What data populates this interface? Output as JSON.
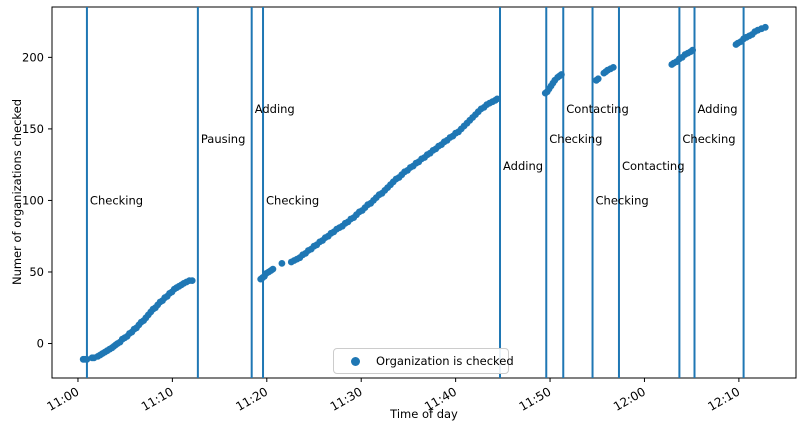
{
  "chart_data": {
    "type": "scatter",
    "title": "",
    "xlabel": "Time of day",
    "ylabel": "Numer of organizations checked",
    "series_name": "Organization is checked",
    "grid": false,
    "legend_position": "lower center",
    "colors": {
      "series": "#1f77b4",
      "event_line": "#1f77b4",
      "spine": "#000000",
      "text": "#000000"
    },
    "x_axis": {
      "label": "Time of day",
      "tick_minutes": [
        0,
        10,
        20,
        30,
        40,
        50,
        60,
        70
      ],
      "tick_labels": [
        "11:00",
        "11:10",
        "11:20",
        "11:30",
        "11:40",
        "11:50",
        "12:00",
        "12:10"
      ],
      "range_minutes": [
        -2.75,
        76.05
      ]
    },
    "y_axis": {
      "label": "Numer of organizations checked",
      "ticks": [
        0,
        50,
        100,
        150,
        200
      ],
      "tick_labels": [
        "0",
        "50",
        "100",
        "150",
        "200"
      ],
      "range": [
        -24.1,
        235.2
      ]
    },
    "event_lines": [
      {
        "time_minutes": 0.95,
        "clock": "11:01",
        "label": "Checking",
        "label_value": 100
      },
      {
        "time_minutes": 12.7,
        "clock": "11:13",
        "label": "Pausing",
        "label_value": 143
      },
      {
        "time_minutes": 18.4,
        "clock": "11:18",
        "label": "Adding",
        "label_value": 164
      },
      {
        "time_minutes": 19.6,
        "clock": "11:20",
        "label": "Checking",
        "label_value": 100
      },
      {
        "time_minutes": 44.7,
        "clock": "11:45",
        "label": "Adding",
        "label_value": 124
      },
      {
        "time_minutes": 49.6,
        "clock": "11:50",
        "label": "Checking",
        "label_value": 143
      },
      {
        "time_minutes": 51.4,
        "clock": "11:51",
        "label": "Contacting",
        "label_value": 164
      },
      {
        "time_minutes": 54.5,
        "clock": "11:54",
        "label": "Checking",
        "label_value": 100
      },
      {
        "time_minutes": 57.3,
        "clock": "11:57",
        "label": "Contacting",
        "label_value": 124
      },
      {
        "time_minutes": 63.7,
        "clock": "12:04",
        "label": "Checking",
        "label_value": 143
      },
      {
        "time_minutes": 65.3,
        "clock": "12:05",
        "label": "Adding",
        "label_value": 164
      },
      {
        "time_minutes": 70.5,
        "clock": "12:10",
        "label": "",
        "label_value": null
      }
    ],
    "points_time_value": [
      [
        0.55,
        -11
      ],
      [
        0.75,
        -11
      ],
      [
        0.95,
        -11
      ],
      [
        1.5,
        -10
      ],
      [
        1.7,
        -10
      ],
      [
        2.1,
        -9
      ],
      [
        2.35,
        -8
      ],
      [
        2.6,
        -7
      ],
      [
        2.85,
        -6
      ],
      [
        3.1,
        -5
      ],
      [
        3.35,
        -4
      ],
      [
        3.6,
        -3
      ],
      [
        3.8,
        -2
      ],
      [
        4.0,
        -1
      ],
      [
        4.2,
        0
      ],
      [
        4.45,
        1
      ],
      [
        4.7,
        3
      ],
      [
        4.95,
        4
      ],
      [
        5.2,
        5
      ],
      [
        5.45,
        7
      ],
      [
        5.7,
        8
      ],
      [
        5.95,
        10
      ],
      [
        6.2,
        11
      ],
      [
        6.45,
        13
      ],
      [
        6.7,
        15
      ],
      [
        6.95,
        16
      ],
      [
        7.2,
        18
      ],
      [
        7.45,
        20
      ],
      [
        7.7,
        22
      ],
      [
        7.95,
        24
      ],
      [
        8.2,
        25
      ],
      [
        8.45,
        27
      ],
      [
        8.7,
        29
      ],
      [
        8.95,
        30
      ],
      [
        9.2,
        32
      ],
      [
        9.45,
        33
      ],
      [
        9.7,
        35
      ],
      [
        9.95,
        36
      ],
      [
        10.2,
        38
      ],
      [
        10.45,
        39
      ],
      [
        10.7,
        40
      ],
      [
        10.95,
        41
      ],
      [
        11.2,
        42
      ],
      [
        11.5,
        43
      ],
      [
        11.8,
        44
      ],
      [
        12.1,
        44
      ],
      [
        19.35,
        45
      ],
      [
        19.55,
        46
      ],
      [
        19.75,
        47
      ],
      [
        19.95,
        49
      ],
      [
        20.2,
        50
      ],
      [
        20.45,
        51
      ],
      [
        20.65,
        52
      ],
      [
        21.6,
        56
      ],
      [
        22.6,
        57
      ],
      [
        22.9,
        58
      ],
      [
        23.2,
        59
      ],
      [
        23.5,
        60
      ],
      [
        23.8,
        62
      ],
      [
        24.1,
        63
      ],
      [
        24.4,
        65
      ],
      [
        24.7,
        66
      ],
      [
        25.0,
        68
      ],
      [
        25.3,
        69
      ],
      [
        25.6,
        71
      ],
      [
        25.9,
        72
      ],
      [
        26.2,
        74
      ],
      [
        26.5,
        75
      ],
      [
        26.8,
        77
      ],
      [
        27.1,
        78
      ],
      [
        27.4,
        80
      ],
      [
        27.7,
        81
      ],
      [
        28.0,
        82
      ],
      [
        28.3,
        84
      ],
      [
        28.6,
        85
      ],
      [
        28.9,
        87
      ],
      [
        29.2,
        88
      ],
      [
        29.5,
        90
      ],
      [
        29.8,
        92
      ],
      [
        30.1,
        93
      ],
      [
        30.4,
        95
      ],
      [
        30.7,
        97
      ],
      [
        31.0,
        98
      ],
      [
        31.3,
        100
      ],
      [
        31.6,
        102
      ],
      [
        31.9,
        104
      ],
      [
        32.2,
        105
      ],
      [
        32.5,
        107
      ],
      [
        32.8,
        109
      ],
      [
        33.1,
        111
      ],
      [
        33.4,
        113
      ],
      [
        33.7,
        115
      ],
      [
        34.0,
        116
      ],
      [
        34.3,
        118
      ],
      [
        34.6,
        120
      ],
      [
        34.9,
        121
      ],
      [
        35.2,
        123
      ],
      [
        35.5,
        124
      ],
      [
        35.8,
        126
      ],
      [
        36.1,
        127
      ],
      [
        36.4,
        129
      ],
      [
        36.7,
        130
      ],
      [
        37.0,
        132
      ],
      [
        37.3,
        133
      ],
      [
        37.6,
        135
      ],
      [
        37.9,
        136
      ],
      [
        38.2,
        138
      ],
      [
        38.5,
        139
      ],
      [
        38.8,
        141
      ],
      [
        39.1,
        142
      ],
      [
        39.4,
        144
      ],
      [
        39.7,
        145
      ],
      [
        40.0,
        147
      ],
      [
        40.3,
        148
      ],
      [
        40.6,
        150
      ],
      [
        40.9,
        152
      ],
      [
        41.2,
        154
      ],
      [
        41.5,
        156
      ],
      [
        41.8,
        158
      ],
      [
        42.1,
        160
      ],
      [
        42.4,
        162
      ],
      [
        42.7,
        164
      ],
      [
        43.0,
        165
      ],
      [
        43.3,
        167
      ],
      [
        43.6,
        168
      ],
      [
        43.9,
        169
      ],
      [
        44.2,
        170
      ],
      [
        44.4,
        171
      ],
      [
        49.5,
        175
      ],
      [
        49.7,
        176
      ],
      [
        49.9,
        178
      ],
      [
        50.1,
        180
      ],
      [
        50.3,
        182
      ],
      [
        50.5,
        184
      ],
      [
        50.8,
        186
      ],
      [
        51.0,
        187
      ],
      [
        51.2,
        188
      ],
      [
        54.9,
        184
      ],
      [
        55.1,
        185
      ],
      [
        55.7,
        189
      ],
      [
        55.9,
        190
      ],
      [
        56.1,
        191
      ],
      [
        56.4,
        192
      ],
      [
        56.7,
        193
      ],
      [
        62.9,
        195
      ],
      [
        63.1,
        196
      ],
      [
        63.4,
        197
      ],
      [
        63.7,
        199
      ],
      [
        64.0,
        200
      ],
      [
        64.3,
        202
      ],
      [
        64.6,
        203
      ],
      [
        64.9,
        204
      ],
      [
        65.1,
        205
      ],
      [
        69.7,
        209
      ],
      [
        69.9,
        210
      ],
      [
        70.2,
        211
      ],
      [
        70.5,
        213
      ],
      [
        70.8,
        214
      ],
      [
        71.1,
        215
      ],
      [
        71.4,
        216
      ],
      [
        71.7,
        218
      ],
      [
        72.0,
        219
      ],
      [
        72.4,
        220
      ],
      [
        72.8,
        221
      ]
    ]
  }
}
